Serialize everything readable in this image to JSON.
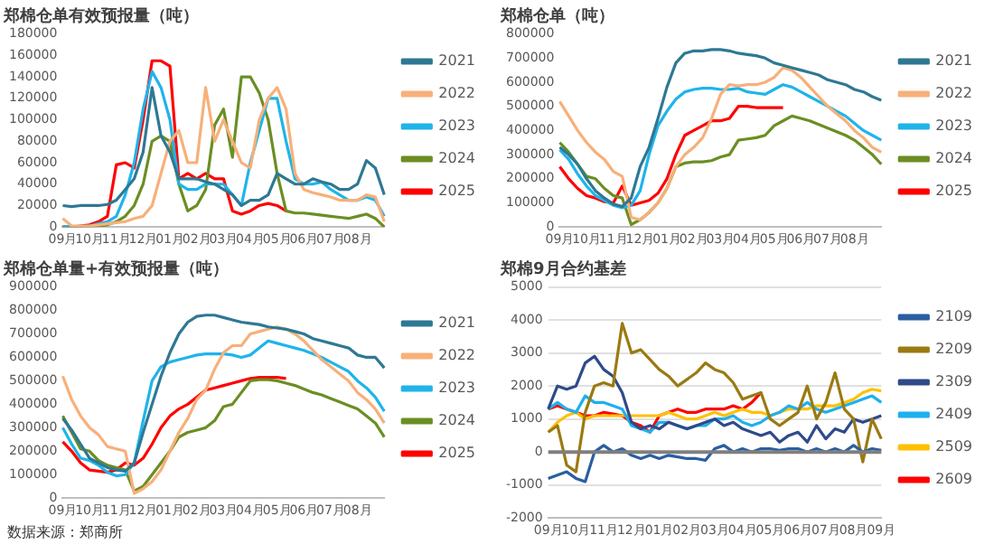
{
  "chart_data": [
    {
      "type": "line",
      "title": "郑棉仓单有效预报量（吨）",
      "legend": "right",
      "grid": false,
      "categories": [
        "09月",
        null,
        null,
        "10月",
        null,
        null,
        "11月",
        null,
        null,
        "12月",
        null,
        null,
        "01月",
        null,
        null,
        "02月",
        null,
        null,
        "03月",
        null,
        null,
        "04月",
        null,
        null,
        "05月",
        null,
        null,
        "06月",
        null,
        null,
        "07月",
        null,
        null,
        "08月",
        null,
        null,
        null
      ],
      "ylim": [
        0,
        180000
      ],
      "yticks": [
        0,
        20000,
        40000,
        60000,
        80000,
        100000,
        120000,
        140000,
        160000,
        180000
      ],
      "series": [
        {
          "name": "2021",
          "color": "#2e7894",
          "values": [
            20000,
            19000,
            20000,
            20000,
            20000,
            21000,
            25000,
            35000,
            45000,
            70000,
            130000,
            85000,
            70000,
            45000,
            45000,
            45000,
            42000,
            40000,
            35000,
            30000,
            20000,
            25000,
            25000,
            30000,
            50000,
            45000,
            40000,
            40000,
            45000,
            42000,
            40000,
            35000,
            35000,
            40000,
            62000,
            55000,
            30000
          ]
        },
        {
          "name": "2022",
          "color": "#f7b07a",
          "values": [
            8000,
            1000,
            1000,
            1000,
            2000,
            3000,
            4000,
            5000,
            8000,
            10000,
            20000,
            50000,
            80000,
            90000,
            60000,
            60000,
            130000,
            80000,
            100000,
            80000,
            60000,
            55000,
            100000,
            120000,
            130000,
            110000,
            50000,
            35000,
            32000,
            30000,
            28000,
            25000,
            25000,
            25000,
            30000,
            28000,
            5000
          ]
        },
        {
          "name": "2023",
          "color": "#1fb4ea",
          "values": [
            0,
            0,
            0,
            1000,
            3000,
            5000,
            10000,
            30000,
            60000,
            110000,
            145000,
            130000,
            100000,
            40000,
            35000,
            35000,
            40000,
            40000,
            40000,
            30000,
            20000,
            60000,
            90000,
            120000,
            120000,
            80000,
            45000,
            40000,
            40000,
            42000,
            35000,
            30000,
            25000,
            25000,
            28000,
            25000,
            10000
          ]
        },
        {
          "name": "2024",
          "color": "#6b8e23",
          "values": [
            0,
            0,
            0,
            0,
            1000,
            2000,
            5000,
            10000,
            20000,
            40000,
            80000,
            85000,
            80000,
            40000,
            15000,
            20000,
            35000,
            95000,
            110000,
            65000,
            140000,
            140000,
            125000,
            100000,
            50000,
            15000,
            13000,
            13000,
            12000,
            11000,
            10000,
            9000,
            8000,
            10000,
            12000,
            8000,
            0
          ]
        },
        {
          "name": "2025",
          "color": "#ff0000",
          "values": [
            0,
            0,
            1000,
            2000,
            5000,
            10000,
            58000,
            60000,
            55000,
            100000,
            155000,
            155000,
            150000,
            45000,
            50000,
            45000,
            50000,
            45000,
            45000,
            15000,
            12000,
            15000,
            20000,
            22000,
            20000,
            15000,
            null,
            null,
            null,
            null,
            null,
            null,
            null,
            null,
            null,
            null,
            null
          ]
        }
      ]
    },
    {
      "type": "line",
      "title": "郑棉仓单（吨）",
      "legend": "right",
      "grid": false,
      "categories": [
        "09月",
        null,
        null,
        "10月",
        null,
        null,
        "11月",
        null,
        null,
        "12月",
        null,
        null,
        "01月",
        null,
        null,
        "02月",
        null,
        null,
        "03月",
        null,
        null,
        "04月",
        null,
        null,
        "05月",
        null,
        null,
        "06月",
        null,
        null,
        "07月",
        null,
        null,
        "08月",
        null,
        null,
        null
      ],
      "ylim": [
        0,
        800000
      ],
      "yticks": [
        0,
        100000,
        200000,
        300000,
        400000,
        500000,
        600000,
        700000,
        800000
      ],
      "series": [
        {
          "name": "2021",
          "color": "#2e7894",
          "values": [
            330000,
            300000,
            260000,
            200000,
            150000,
            120000,
            95000,
            85000,
            120000,
            250000,
            330000,
            450000,
            580000,
            680000,
            720000,
            730000,
            730000,
            735000,
            735000,
            730000,
            720000,
            715000,
            710000,
            700000,
            680000,
            670000,
            660000,
            650000,
            640000,
            630000,
            610000,
            600000,
            590000,
            570000,
            560000,
            540000,
            525000
          ]
        },
        {
          "name": "2022",
          "color": "#f7b07a",
          "values": [
            520000,
            460000,
            400000,
            350000,
            310000,
            280000,
            230000,
            210000,
            40000,
            30000,
            60000,
            100000,
            160000,
            250000,
            300000,
            330000,
            370000,
            450000,
            550000,
            590000,
            585000,
            590000,
            590000,
            600000,
            620000,
            660000,
            650000,
            620000,
            580000,
            540000,
            500000,
            470000,
            440000,
            400000,
            370000,
            330000,
            310000
          ]
        },
        {
          "name": "2023",
          "color": "#1fb4ea",
          "values": [
            320000,
            280000,
            220000,
            170000,
            130000,
            110000,
            90000,
            80000,
            90000,
            150000,
            300000,
            420000,
            480000,
            530000,
            560000,
            570000,
            575000,
            575000,
            570000,
            570000,
            575000,
            560000,
            555000,
            550000,
            570000,
            590000,
            580000,
            560000,
            540000,
            520000,
            500000,
            480000,
            460000,
            430000,
            400000,
            380000,
            360000
          ]
        },
        {
          "name": "2024",
          "color": "#6b8e23",
          "values": [
            350000,
            310000,
            260000,
            210000,
            200000,
            160000,
            130000,
            120000,
            10000,
            30000,
            60000,
            100000,
            160000,
            250000,
            265000,
            270000,
            270000,
            275000,
            290000,
            300000,
            360000,
            365000,
            370000,
            380000,
            420000,
            440000,
            460000,
            450000,
            440000,
            425000,
            410000,
            395000,
            380000,
            360000,
            330000,
            300000,
            260000
          ]
        },
        {
          "name": "2025",
          "color": "#ff0000",
          "values": [
            250000,
            200000,
            160000,
            130000,
            120000,
            105000,
            100000,
            170000,
            90000,
            100000,
            110000,
            140000,
            200000,
            300000,
            380000,
            400000,
            420000,
            440000,
            440000,
            450000,
            500000,
            500000,
            495000,
            495000,
            495000,
            495000,
            null,
            null,
            null,
            null,
            null,
            null,
            null,
            null,
            null,
            null,
            null
          ]
        }
      ]
    },
    {
      "type": "line",
      "title": "郑棉仓单量+有效预报量（吨）",
      "legend": "right",
      "grid": false,
      "annotations": [
        "数据来源：郑商所"
      ],
      "categories": [
        "09月",
        null,
        null,
        "10月",
        null,
        null,
        "11月",
        null,
        null,
        "12月",
        null,
        null,
        "01月",
        null,
        null,
        "02月",
        null,
        null,
        "03月",
        null,
        null,
        "04月",
        null,
        null,
        "05月",
        null,
        null,
        "06月",
        null,
        null,
        "07月",
        null,
        null,
        "08月",
        null,
        null,
        null
      ],
      "ylim": [
        0,
        900000
      ],
      "yticks": [
        0,
        100000,
        200000,
        300000,
        400000,
        500000,
        600000,
        700000,
        800000,
        900000
      ],
      "series": [
        {
          "name": "2021",
          "color": "#2e7894",
          "values": [
            340000,
            290000,
            230000,
            170000,
            150000,
            130000,
            120000,
            115000,
            150000,
            280000,
            400000,
            520000,
            620000,
            700000,
            750000,
            775000,
            780000,
            780000,
            770000,
            760000,
            750000,
            745000,
            740000,
            730000,
            725000,
            720000,
            710000,
            700000,
            680000,
            670000,
            660000,
            650000,
            640000,
            610000,
            600000,
            600000,
            555000
          ]
        },
        {
          "name": "2022",
          "color": "#f7b07a",
          "values": [
            520000,
            420000,
            350000,
            300000,
            270000,
            220000,
            210000,
            200000,
            20000,
            40000,
            70000,
            120000,
            200000,
            280000,
            340000,
            420000,
            460000,
            550000,
            620000,
            650000,
            650000,
            700000,
            710000,
            720000,
            730000,
            720000,
            700000,
            670000,
            630000,
            590000,
            560000,
            530000,
            500000,
            450000,
            420000,
            380000,
            320000
          ]
        },
        {
          "name": "2023",
          "color": "#1fb4ea",
          "values": [
            300000,
            230000,
            170000,
            160000,
            140000,
            110000,
            95000,
            100000,
            150000,
            330000,
            500000,
            560000,
            580000,
            590000,
            600000,
            610000,
            615000,
            615000,
            615000,
            610000,
            600000,
            610000,
            640000,
            670000,
            660000,
            650000,
            640000,
            630000,
            615000,
            600000,
            580000,
            560000,
            540000,
            500000,
            470000,
            430000,
            370000
          ]
        },
        {
          "name": "2024",
          "color": "#6b8e23",
          "values": [
            350000,
            280000,
            210000,
            200000,
            160000,
            140000,
            130000,
            120000,
            30000,
            50000,
            100000,
            150000,
            200000,
            260000,
            280000,
            290000,
            300000,
            330000,
            390000,
            400000,
            450000,
            500000,
            505000,
            505000,
            500000,
            490000,
            480000,
            465000,
            450000,
            440000,
            425000,
            410000,
            395000,
            380000,
            350000,
            320000,
            260000
          ]
        },
        {
          "name": "2025",
          "color": "#ff0000",
          "values": [
            240000,
            200000,
            150000,
            120000,
            115000,
            110000,
            120000,
            150000,
            140000,
            170000,
            230000,
            300000,
            350000,
            380000,
            400000,
            430000,
            460000,
            470000,
            480000,
            490000,
            500000,
            510000,
            515000,
            515000,
            515000,
            510000,
            null,
            null,
            null,
            null,
            null,
            null,
            null,
            null,
            null,
            null,
            null
          ]
        }
      ]
    },
    {
      "type": "line",
      "title": "郑棉9月合约基差",
      "legend": "right",
      "grid": "y",
      "categories": [
        "09月",
        null,
        null,
        "10月",
        null,
        null,
        "11月",
        null,
        null,
        "12月",
        null,
        null,
        "01月",
        null,
        null,
        "02月",
        null,
        null,
        "03月",
        null,
        null,
        "04月",
        null,
        null,
        "05月",
        null,
        null,
        "06月",
        null,
        null,
        "07月",
        null,
        null,
        "08月",
        null,
        null,
        "09月"
      ],
      "ylim": [
        -2000,
        5000
      ],
      "yticks": [
        -2000,
        -1000,
        0,
        1000,
        2000,
        3000,
        4000,
        5000
      ],
      "ref_lines": [
        {
          "axis": "y",
          "value": 0,
          "color": "#7f7f7f"
        }
      ],
      "series": [
        {
          "name": "2109",
          "color": "#2a5fa0",
          "values": [
            -800,
            -700,
            -600,
            -800,
            -900,
            0,
            200,
            0,
            100,
            -100,
            -200,
            -100,
            -200,
            -100,
            -150,
            -200,
            -200,
            -250,
            100,
            200,
            0,
            100,
            0,
            100,
            100,
            50,
            100,
            100,
            0,
            100,
            0,
            100,
            0,
            200,
            0,
            100,
            50
          ]
        },
        {
          "name": "2209",
          "color": "#9a7a12",
          "values": [
            600,
            800,
            -400,
            -600,
            1200,
            2000,
            2100,
            2000,
            3900,
            3000,
            3100,
            2800,
            2500,
            2300,
            2000,
            2200,
            2400,
            2700,
            2500,
            2400,
            2100,
            1600,
            1700,
            1800,
            1000,
            800,
            1000,
            1200,
            2000,
            1000,
            1500,
            2400,
            1300,
            1000,
            -300,
            1000,
            400
          ]
        },
        {
          "name": "2309",
          "color": "#2f4a8a",
          "values": [
            1300,
            2000,
            1900,
            2000,
            2700,
            2900,
            2500,
            2300,
            1800,
            900,
            700,
            800,
            700,
            900,
            800,
            700,
            800,
            900,
            1000,
            800,
            900,
            700,
            600,
            500,
            600,
            300,
            500,
            600,
            300,
            800,
            400,
            700,
            600,
            1000,
            900,
            1000,
            1100
          ]
        },
        {
          "name": "2409",
          "color": "#1eb0ef",
          "values": [
            1300,
            1500,
            1300,
            1200,
            1700,
            1500,
            1500,
            1400,
            1300,
            800,
            700,
            600,
            900,
            900,
            800,
            700,
            800,
            800,
            1000,
            1000,
            1100,
            900,
            800,
            900,
            1100,
            1200,
            1400,
            1300,
            1500,
            1300,
            1200,
            1300,
            1400,
            1500,
            1600,
            1700,
            1500
          ]
        },
        {
          "name": "2509",
          "color": "#ffc000",
          "values": [
            600,
            900,
            1100,
            1200,
            1000,
            1100,
            1100,
            1100,
            1100,
            1100,
            1100,
            1100,
            1100,
            1200,
            1100,
            1000,
            1000,
            1100,
            1200,
            1100,
            1200,
            1300,
            1200,
            1200,
            1100,
            1200,
            1300,
            1300,
            1300,
            1400,
            1400,
            1400,
            1500,
            1600,
            1800,
            1900,
            1850
          ]
        },
        {
          "name": "2609",
          "color": "#ff0000",
          "values": [
            1300,
            1400,
            1300,
            1200,
            1100,
            1100,
            1200,
            1150,
            1100,
            900,
            800,
            600,
            1100,
            1200,
            1300,
            1200,
            1200,
            1300,
            1300,
            1300,
            1400,
            1300,
            1500,
            1800,
            null,
            null,
            null,
            null,
            null,
            null,
            null,
            null,
            null,
            null,
            null,
            null,
            null
          ]
        }
      ]
    }
  ]
}
